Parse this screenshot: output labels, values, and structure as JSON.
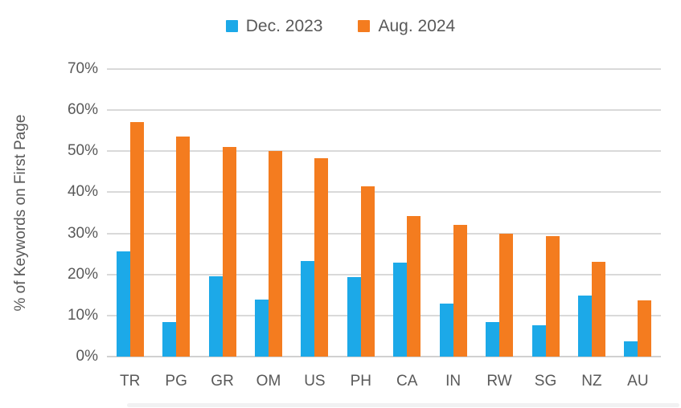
{
  "chart_data": {
    "type": "bar",
    "title": "",
    "ylabel": "% of Keywords on First Page",
    "xlabel": "",
    "ylim": [
      0,
      70
    ],
    "ytick_step": 10,
    "yticks": [
      "0%",
      "10%",
      "20%",
      "30%",
      "40%",
      "50%",
      "60%",
      "70%"
    ],
    "grid": true,
    "legend_position": "top",
    "categories": [
      "TR",
      "PG",
      "GR",
      "OM",
      "US",
      "PH",
      "CA",
      "IN",
      "RW",
      "SG",
      "NZ",
      "AU"
    ],
    "series": [
      {
        "name": "Dec. 2023",
        "color": "#1CA9E8",
        "values": [
          25.7,
          8.4,
          19.5,
          13.8,
          23.2,
          19.4,
          22.8,
          12.9,
          8.4,
          7.7,
          14.8,
          3.8
        ]
      },
      {
        "name": "Aug. 2024",
        "color": "#F47C1F",
        "values": [
          57.1,
          53.5,
          51.1,
          50.0,
          48.3,
          41.5,
          34.2,
          32.0,
          30.0,
          29.4,
          23.0,
          13.6
        ]
      }
    ]
  }
}
